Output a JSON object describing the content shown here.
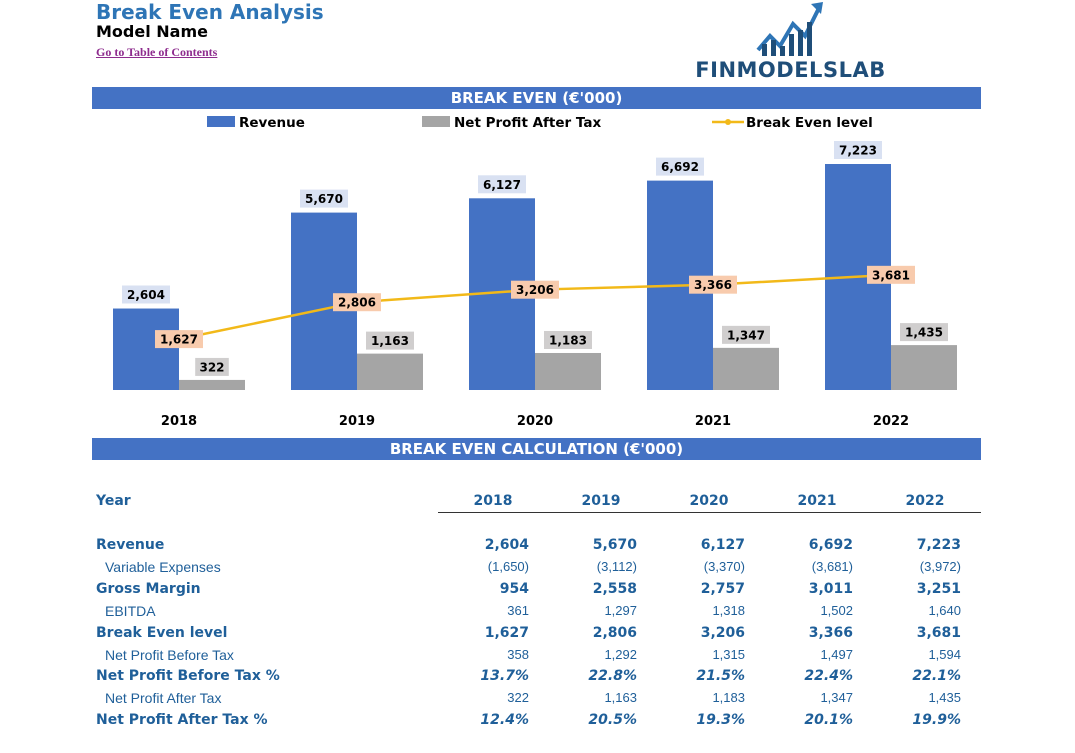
{
  "header": {
    "title": "Break Even Analysis",
    "model_name": "Model Name",
    "toc_link": "Go to Table of Contents",
    "logo_text": "FINMODELSLAB"
  },
  "colors": {
    "band": "#4472c4",
    "revenue": "#4472c4",
    "profit": "#a5a5a5",
    "break_even": "#f2b919",
    "label_revenue_bg": "#d9e1f2",
    "label_profit_bg": "#d0cece",
    "label_be_bg": "#f8cbad"
  },
  "chart_section": {
    "title": "BREAK EVEN (€'000)"
  },
  "chart_data": {
    "type": "bar",
    "categories": [
      "2018",
      "2019",
      "2020",
      "2021",
      "2022"
    ],
    "series": [
      {
        "name": "Revenue",
        "type": "bar",
        "values": [
          2604,
          5670,
          6127,
          6692,
          7223
        ],
        "labels": [
          "2,604",
          "5,670",
          "6,127",
          "6,692",
          "7,223"
        ]
      },
      {
        "name": "Net Profit After Tax",
        "type": "bar",
        "values": [
          322,
          1163,
          1183,
          1347,
          1435
        ],
        "labels": [
          "322",
          "1,163",
          "1,183",
          "1,347",
          "1,435"
        ]
      },
      {
        "name": "Break Even level",
        "type": "line",
        "values": [
          1627,
          2806,
          3206,
          3366,
          3681
        ],
        "labels": [
          "1,627",
          "2,806",
          "3,206",
          "3,366",
          "3,681"
        ]
      }
    ],
    "legend_position": "top",
    "grid": false
  },
  "table_section": {
    "title": "BREAK EVEN CALCULATION (€'000)"
  },
  "table": {
    "year_label": "Year",
    "years": [
      "2018",
      "2019",
      "2020",
      "2021",
      "2022"
    ],
    "rows": [
      {
        "label": "Revenue",
        "style": "bold",
        "values": [
          "2,604",
          "5,670",
          "6,127",
          "6,692",
          "7,223"
        ]
      },
      {
        "label": "Variable Expenses",
        "style": "sub",
        "values": [
          "(1,650)",
          "(3,112)",
          "(3,370)",
          "(3,681)",
          "(3,972)"
        ]
      },
      {
        "label": "Gross Margin",
        "style": "bold",
        "values": [
          "954",
          "2,558",
          "2,757",
          "3,011",
          "3,251"
        ]
      },
      {
        "label": "EBITDA",
        "style": "sub",
        "values": [
          "361",
          "1,297",
          "1,318",
          "1,502",
          "1,640"
        ]
      },
      {
        "label": "Break Even level",
        "style": "bold",
        "values": [
          "1,627",
          "2,806",
          "3,206",
          "3,366",
          "3,681"
        ]
      },
      {
        "label": "Net Profit Before Tax",
        "style": "sub",
        "values": [
          "358",
          "1,292",
          "1,315",
          "1,497",
          "1,594"
        ]
      },
      {
        "label": "Net Profit Before Tax %",
        "style": "bold pct",
        "values": [
          "13.7%",
          "22.8%",
          "21.5%",
          "22.4%",
          "22.1%"
        ]
      },
      {
        "label": "Net Profit After Tax",
        "style": "sub",
        "values": [
          "322",
          "1,163",
          "1,183",
          "1,347",
          "1,435"
        ]
      },
      {
        "label": "Net Profit After Tax %",
        "style": "bold pct",
        "values": [
          "12.4%",
          "20.5%",
          "19.3%",
          "20.1%",
          "19.9%"
        ]
      }
    ]
  }
}
